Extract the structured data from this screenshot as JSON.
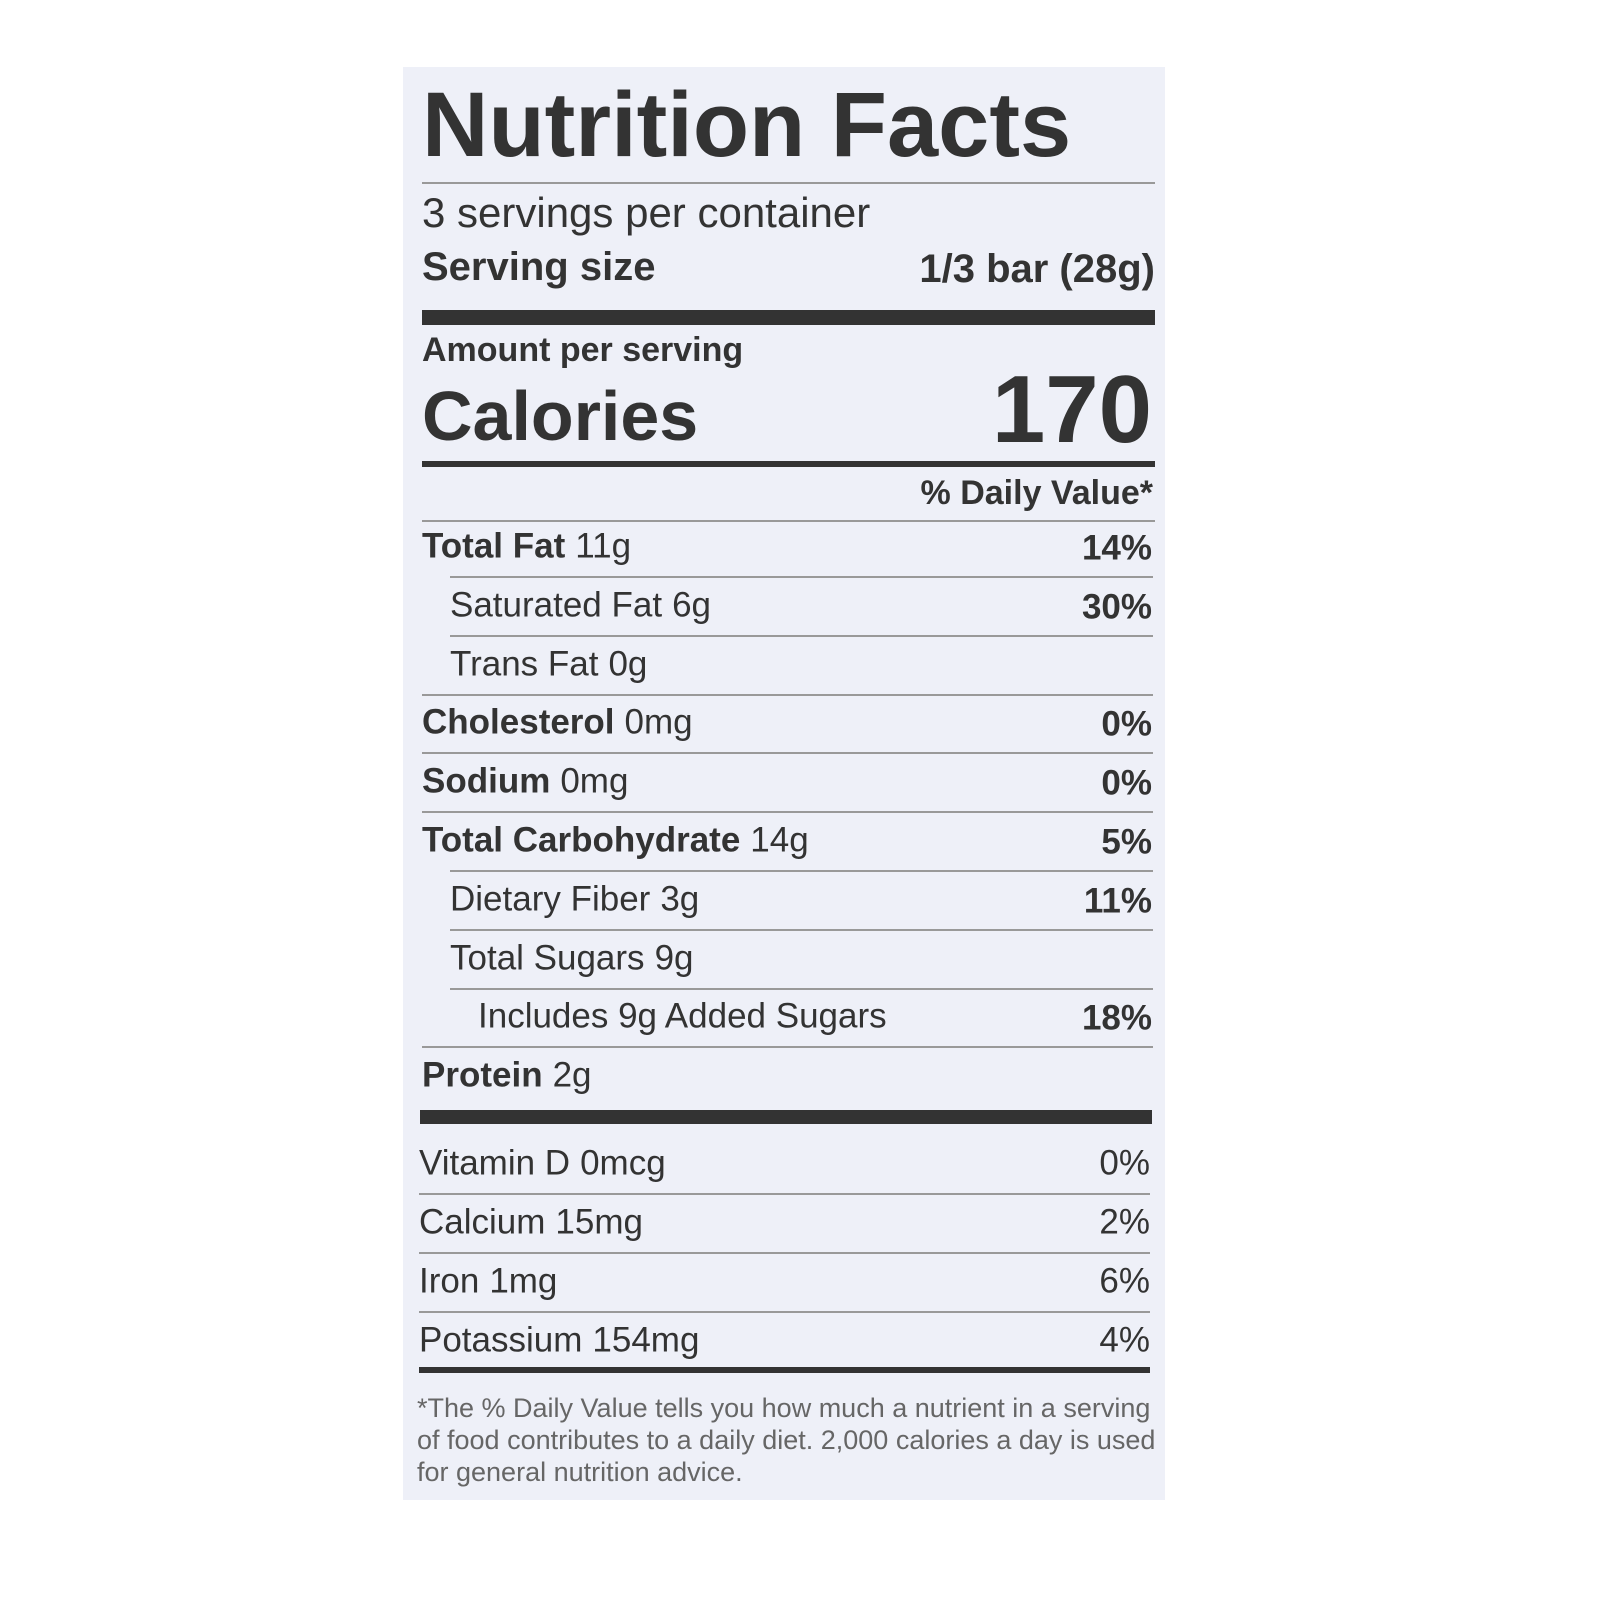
{
  "title": "Nutrition Facts",
  "servings": "3 servings per container",
  "serving_size": {
    "label": "Serving size",
    "value": "1/3 bar (28g)"
  },
  "amount_per_serving": "Amount per serving",
  "calories": {
    "label": "Calories",
    "value": "170"
  },
  "daily_value_header": "% Daily Value*",
  "nutrients": [
    {
      "name": "Total Fat",
      "amount": "11g",
      "dv": "14%"
    },
    {
      "name": "Saturated Fat",
      "amount": "6g",
      "dv": "30%"
    },
    {
      "name": "Trans Fat",
      "amount": "0g"
    },
    {
      "name": "Cholesterol",
      "amount": "0mg",
      "dv": "0%"
    },
    {
      "name": "Sodium",
      "amount": "0mg",
      "dv": "0%"
    },
    {
      "name": "Total Carbohydrate",
      "amount": "14g",
      "dv": "5%"
    },
    {
      "name": "Dietary Fiber",
      "amount": "3g",
      "dv": "11%"
    },
    {
      "name": "Total Sugars",
      "amount": "9g"
    },
    {
      "name": "Includes 9g Added Sugars",
      "dv": "18%"
    },
    {
      "name": "Protein",
      "amount": "2g"
    }
  ],
  "vitamins": [
    {
      "name": "Vitamin D",
      "amount": "0mcg",
      "dv": "0%"
    },
    {
      "name": "Calcium",
      "amount": "15mg",
      "dv": "2%"
    },
    {
      "name": "Iron",
      "amount": "1mg",
      "dv": "6%"
    },
    {
      "name": "Potassium",
      "amount": "154mg",
      "dv": "4%"
    }
  ],
  "footnote": "*The % Daily Value tells you how much a nutrient in a serving of food contributes to a daily diet. 2,000 calories a day is used for general nutrition advice."
}
